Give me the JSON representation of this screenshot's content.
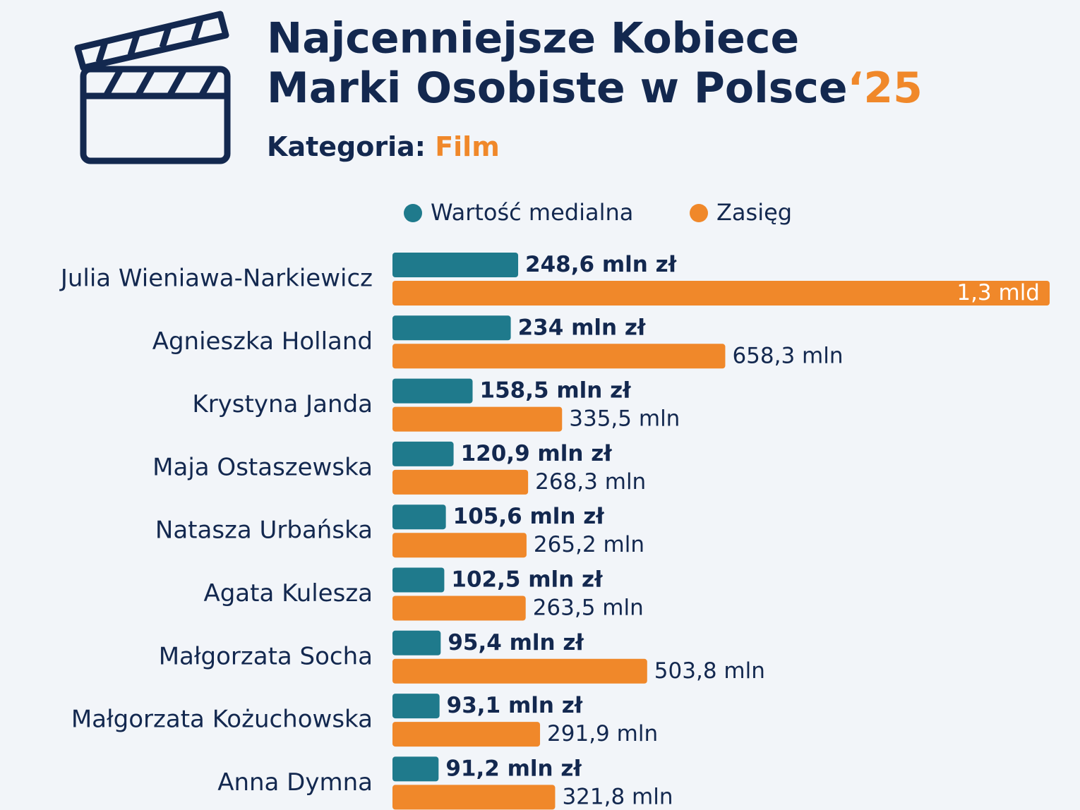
{
  "chart_data": {
    "type": "bar",
    "title": [
      "Najcenniejsze Kobiece",
      "Marki Osobiste w Polsce"
    ],
    "title_suffix": "‘25",
    "subtitle_label": "Kategoria:",
    "subtitle": "Film",
    "categories": [
      "Julia Wieniawa-Narkiewicz",
      "Agnieszka Holland",
      "Krystyna Janda",
      "Maja Ostaszewska",
      "Natasza Urbańska",
      "Agata Kulesza",
      "Małgorzata Socha",
      "Małgorzata Kożuchowska",
      "Anna Dymna"
    ],
    "series": [
      {
        "name": "Wartość medialna",
        "color": "#1f7a8c",
        "values": [
          248.6,
          234,
          158.5,
          120.9,
          105.6,
          102.5,
          95.4,
          93.1,
          91.2
        ],
        "value_labels": [
          "248,6 mln zł",
          "234 mln zł",
          "158,5 mln zł",
          "120,9 mln zł",
          "105,6 mln zł",
          "102,5 mln zł",
          "95,4 mln zł",
          "93,1 mln zł",
          "91,2 mln zł"
        ]
      },
      {
        "name": "Zasięg",
        "color": "#f0882a",
        "values": [
          1300,
          658.3,
          335.5,
          268.3,
          265.2,
          263.5,
          503.8,
          291.9,
          321.8
        ],
        "value_labels": [
          "1,3 mld",
          "658,3 mln",
          "335,5 mln",
          "268,3 mln",
          "265,2 mln",
          "263,5 mln",
          "503,8 mln",
          "291,9 mln",
          "321,8 mln"
        ]
      }
    ],
    "orientation": "horizontal",
    "legend": "top"
  }
}
